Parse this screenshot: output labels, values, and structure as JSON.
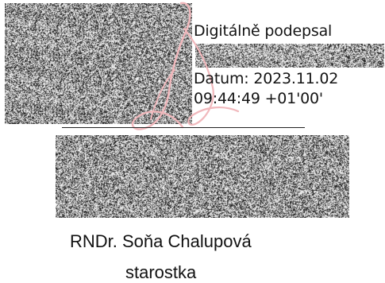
{
  "signature": {
    "signed_label": "Digitálně podepsal",
    "date_label": "Datum: 2023.11.02",
    "time_label": "09:44:49 +01'00'"
  },
  "signatory": {
    "name": "RNDr. Soňa Chalupová",
    "role": "starostka"
  },
  "colors": {
    "flourish": "#f1b8bc",
    "text": "#141414",
    "line": "#222222"
  }
}
